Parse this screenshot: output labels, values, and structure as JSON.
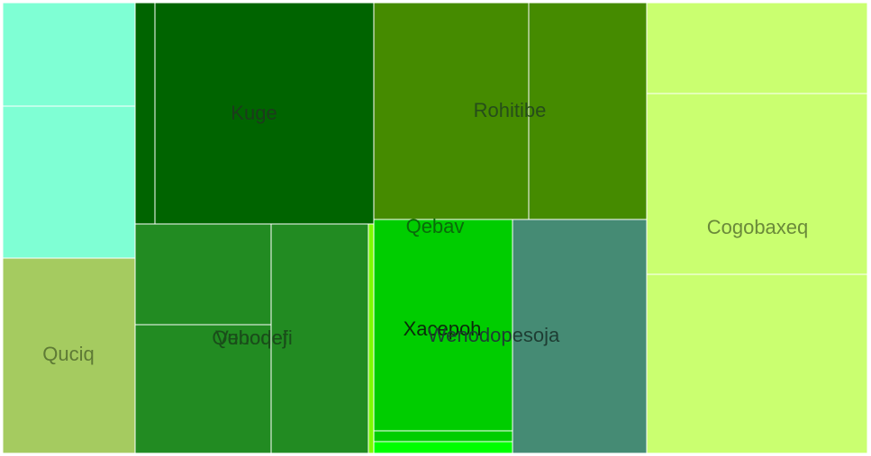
{
  "chart_data": {
    "type": "treemap",
    "title": "",
    "groups": [
      {
        "name": "Quciq",
        "color": "#a5cb60",
        "text_color": "#5e7a35"
      },
      {
        "name": "Kuge",
        "color": "#006400",
        "text_color": "#1c3b1c"
      },
      {
        "name": "Qebav",
        "color": "#008b00",
        "text_color": "#0a6a0a"
      },
      {
        "name": "Vebodefi",
        "color": "#228b22",
        "text_color": "#1a4d1a"
      },
      {
        "name": "Quhoqej",
        "color": "#228b22",
        "text_color": "#1a4d1a"
      },
      {
        "name": "Rohitibe",
        "color": "#458b00",
        "text_color": "#264d1a"
      },
      {
        "name": "Xacepoh",
        "color": "#00cd00",
        "text_color": "#0a2a0a"
      },
      {
        "name": "Wenodopesoja",
        "color": "#458b74",
        "text_color": "#1e3d33"
      },
      {
        "name": "Cogobaxeq",
        "color": "#caff70",
        "text_color": "#6a8a3a"
      }
    ],
    "cells": [
      {
        "group": "Quciq",
        "color": "#7fffd4"
      },
      {
        "group": "Quciq",
        "color": "#7fffd4"
      },
      {
        "group": "Quciq",
        "color": "#a5cb60"
      },
      {
        "group": "Kuge",
        "color": "#006400"
      },
      {
        "group": "Kuge",
        "color": "#006400"
      },
      {
        "group": "Quhoqej",
        "color": "#228b22"
      },
      {
        "group": "Quhoqej",
        "color": "#228b22"
      },
      {
        "group": "Vebodefi",
        "color": "#228b22"
      },
      {
        "group": "Qebav",
        "color": "#7cfc00"
      },
      {
        "group": "Rohitibe",
        "color": "#458b00"
      },
      {
        "group": "Rohitibe",
        "color": "#458b00"
      },
      {
        "group": "Xacepoh",
        "color": "#00cd00"
      },
      {
        "group": "Xacepoh",
        "color": "#00cd00"
      },
      {
        "group": "Xacepoh",
        "color": "#00ff00"
      },
      {
        "group": "Wenodopesoja",
        "color": "#458b74"
      },
      {
        "group": "Cogobaxeq",
        "color": "#caff70"
      },
      {
        "group": "Cogobaxeq",
        "color": "#caff70"
      },
      {
        "group": "Cogobaxeq",
        "color": "#caff70"
      }
    ]
  }
}
